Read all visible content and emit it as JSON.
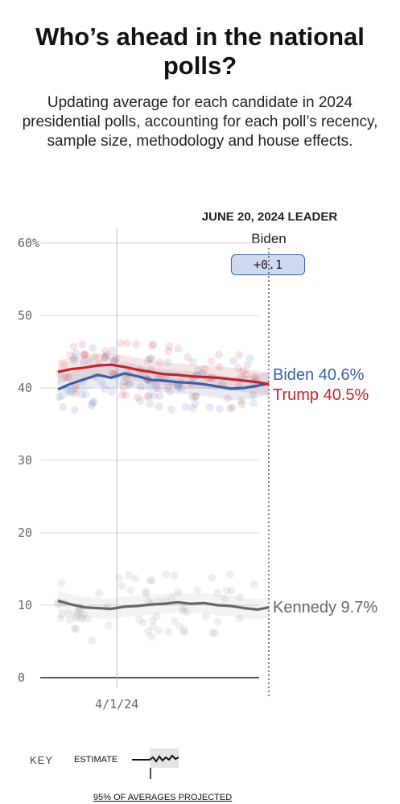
{
  "title": "Who’s ahead in the national polls?",
  "subtitle": "Updating average for each candidate in 2024 presidential polls, accounting for each poll’s recency, sample size, methodology and house effects.",
  "leader": {
    "heading": "JUNE 20, 2024 LEADER",
    "name": "Biden",
    "margin": "+0.1"
  },
  "key": {
    "label": "KEY",
    "estimate": "ESTIMATE",
    "range": "95% OF AVERAGES PROJECTED"
  },
  "colors": {
    "biden": "#3a5fa8",
    "trump": "#c0262d",
    "kennedy": "#666666",
    "badge_fill": "#cfd9f1"
  },
  "chart_data": {
    "type": "line",
    "ylim": [
      0,
      60
    ],
    "y_ticks": [
      {
        "value": 60,
        "label": "60%"
      },
      {
        "value": 50,
        "label": "50"
      },
      {
        "value": 40,
        "label": "40"
      },
      {
        "value": 30,
        "label": "30"
      },
      {
        "value": 20,
        "label": "20"
      },
      {
        "value": 10,
        "label": "10"
      },
      {
        "value": 0,
        "label": "0"
      }
    ],
    "x_ticks": [
      {
        "date": "2024-04-01",
        "label": "4/1/24"
      }
    ],
    "x_range": [
      "2024-03-01",
      "2024-06-20"
    ],
    "grid": "horizontal",
    "series": [
      {
        "name": "Biden",
        "end_label": "Biden 40.6%",
        "color": "#3a5fa8",
        "x": [
          "2024-03-01",
          "2024-03-08",
          "2024-03-15",
          "2024-03-22",
          "2024-03-29",
          "2024-04-05",
          "2024-04-12",
          "2024-04-19",
          "2024-04-26",
          "2024-05-03",
          "2024-05-10",
          "2024-05-17",
          "2024-05-24",
          "2024-05-31",
          "2024-06-07",
          "2024-06-14",
          "2024-06-20"
        ],
        "values": [
          39.8,
          40.6,
          41.2,
          41.8,
          41.4,
          42.0,
          41.6,
          41.1,
          41.0,
          40.8,
          40.7,
          40.5,
          40.2,
          39.9,
          40.0,
          40.3,
          40.6
        ]
      },
      {
        "name": "Trump",
        "end_label": "Trump 40.5%",
        "color": "#c0262d",
        "x": [
          "2024-03-01",
          "2024-03-08",
          "2024-03-15",
          "2024-03-22",
          "2024-03-29",
          "2024-04-05",
          "2024-04-12",
          "2024-04-19",
          "2024-04-26",
          "2024-05-03",
          "2024-05-10",
          "2024-05-17",
          "2024-05-24",
          "2024-05-31",
          "2024-06-07",
          "2024-06-14",
          "2024-06-20"
        ],
        "values": [
          42.2,
          42.6,
          42.8,
          43.1,
          43.2,
          42.9,
          42.5,
          42.2,
          41.9,
          41.8,
          41.6,
          41.5,
          41.4,
          41.2,
          41.0,
          40.8,
          40.5
        ]
      },
      {
        "name": "Kennedy",
        "end_label": "Kennedy 9.7%",
        "color": "#666666",
        "x": [
          "2024-03-01",
          "2024-03-08",
          "2024-03-15",
          "2024-03-22",
          "2024-03-29",
          "2024-04-05",
          "2024-04-12",
          "2024-04-19",
          "2024-04-26",
          "2024-05-03",
          "2024-05-10",
          "2024-05-17",
          "2024-05-24",
          "2024-05-31",
          "2024-06-07",
          "2024-06-14",
          "2024-06-20"
        ],
        "values": [
          10.6,
          10.1,
          9.7,
          9.6,
          9.5,
          9.8,
          9.9,
          10.1,
          10.2,
          10.4,
          10.2,
          10.3,
          10.0,
          9.9,
          9.6,
          9.4,
          9.7
        ]
      }
    ]
  }
}
